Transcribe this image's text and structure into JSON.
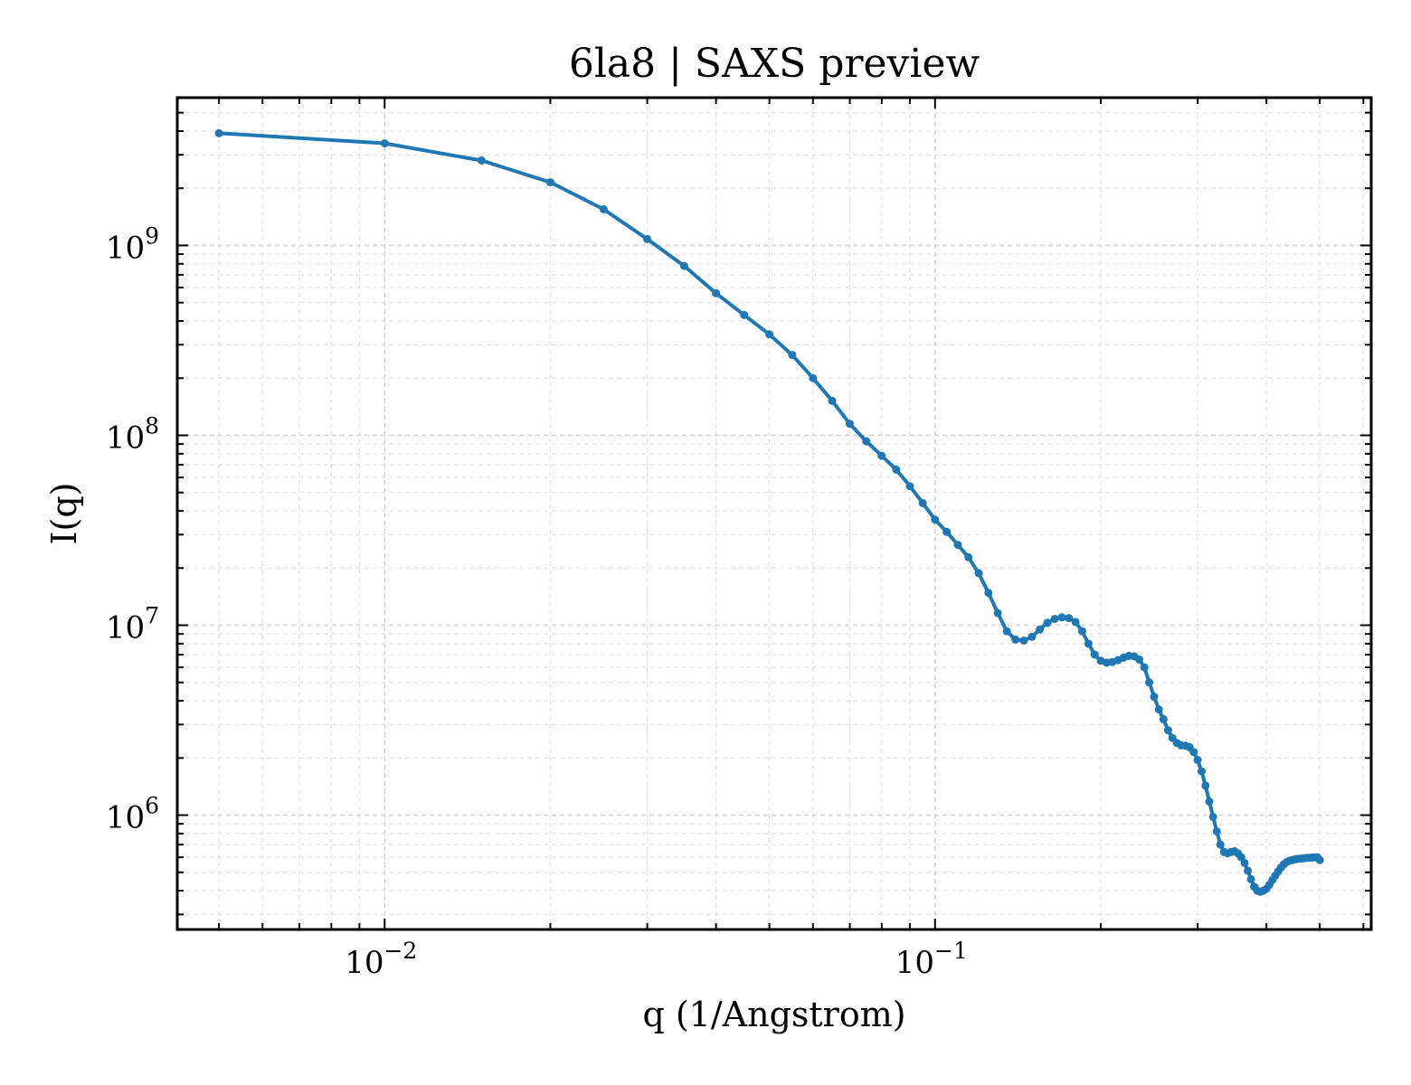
{
  "chart_data": {
    "type": "line",
    "title": "6la8 | SAXS preview",
    "xlabel": "q (1/Angstrom)",
    "ylabel": "I(q)",
    "xscale": "log",
    "yscale": "log",
    "xlim": [
      0.0042,
      0.62
    ],
    "ylim": [
      250000,
      6000000000
    ],
    "grid": true,
    "legend": "none",
    "x_ticks": [
      {
        "value": 0.01,
        "base": "10",
        "exp": "−2"
      },
      {
        "value": 0.1,
        "base": "10",
        "exp": "−1"
      }
    ],
    "y_ticks": [
      {
        "value": 1000000,
        "base": "10",
        "exp": "6"
      },
      {
        "value": 10000000,
        "base": "10",
        "exp": "7"
      },
      {
        "value": 100000000,
        "base": "10",
        "exp": "8"
      },
      {
        "value": 1000000000,
        "base": "10",
        "exp": "9"
      }
    ],
    "series_color": "#1f77b4",
    "series": [
      {
        "x": [
          0.005,
          0.01,
          0.015,
          0.02,
          0.025,
          0.03,
          0.035,
          0.04,
          0.045,
          0.05,
          0.055,
          0.06,
          0.065,
          0.07,
          0.075,
          0.08,
          0.085,
          0.09,
          0.095,
          0.1,
          0.105,
          0.11,
          0.115,
          0.12,
          0.125,
          0.13,
          0.135,
          0.14,
          0.145,
          0.15,
          0.155,
          0.16,
          0.165,
          0.17,
          0.175,
          0.18,
          0.185,
          0.19,
          0.195,
          0.2,
          0.205,
          0.21,
          0.215,
          0.22,
          0.225,
          0.23,
          0.235,
          0.24,
          0.245,
          0.25,
          0.255,
          0.26,
          0.265,
          0.27,
          0.275,
          0.28,
          0.285,
          0.29,
          0.295,
          0.3,
          0.305,
          0.31,
          0.315,
          0.32,
          0.325,
          0.33,
          0.335,
          0.34,
          0.345,
          0.35,
          0.355,
          0.36,
          0.365,
          0.37,
          0.375,
          0.38,
          0.385,
          0.39,
          0.395,
          0.4,
          0.405,
          0.41,
          0.415,
          0.42,
          0.425,
          0.43,
          0.435,
          0.44,
          0.445,
          0.45,
          0.455,
          0.46,
          0.465,
          0.47,
          0.475,
          0.48,
          0.485,
          0.49,
          0.495,
          0.5
        ],
        "y": [
          3900000000,
          3450000000,
          2800000000,
          2150000000,
          1550000000,
          1080000000,
          780000000,
          560000000,
          430000000,
          340000000,
          265000000,
          200000000,
          152000000,
          115000000,
          93000000,
          78000000,
          66000000,
          54000000,
          44000000,
          36000000,
          31000000,
          26500000,
          22800000,
          18800000,
          14800000,
          11600000,
          9300000,
          8400000,
          8300000,
          8700000,
          9500000,
          10300000,
          10800000,
          11000000,
          10900000,
          10400000,
          9300000,
          8000000,
          7000000,
          6500000,
          6350000,
          6400000,
          6550000,
          6750000,
          6900000,
          6850000,
          6600000,
          6000000,
          5000000,
          4200000,
          3600000,
          3200000,
          2800000,
          2550000,
          2400000,
          2330000,
          2320000,
          2280000,
          2150000,
          1950000,
          1700000,
          1430000,
          1180000,
          980000,
          820000,
          700000,
          640000,
          630000,
          640000,
          645000,
          630000,
          600000,
          560000,
          510000,
          460000,
          420000,
          400000,
          395000,
          400000,
          410000,
          430000,
          455000,
          480000,
          505000,
          530000,
          550000,
          565000,
          575000,
          580000,
          585000,
          588000,
          590000,
          592000,
          594000,
          596000,
          597000,
          598000,
          599000,
          600000,
          580000
        ]
      }
    ]
  }
}
